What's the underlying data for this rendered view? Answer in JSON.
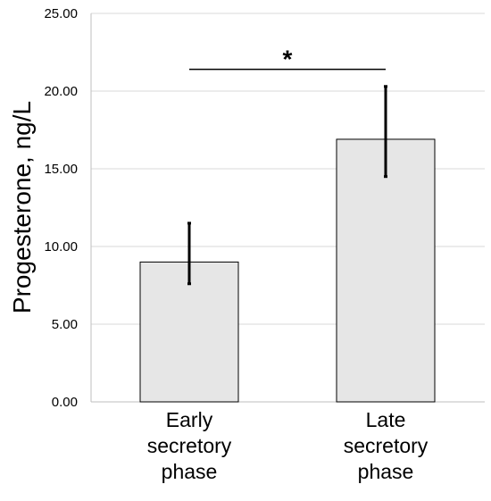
{
  "chart_data": {
    "type": "bar",
    "categories": [
      [
        "Early",
        "secretory",
        "phase"
      ],
      [
        "Late",
        "secretory",
        "phase"
      ]
    ],
    "values": [
      9.0,
      16.9
    ],
    "error_upper": [
      11.5,
      20.3
    ],
    "error_lower": [
      7.6,
      14.5
    ],
    "ylabel": "Progesterone, ng/L",
    "yticks": [
      "0.00",
      "5.00",
      "10.00",
      "15.00",
      "20.00",
      "25.00"
    ],
    "ylim": [
      0,
      25
    ],
    "grid": true,
    "significance": {
      "label": "*",
      "between": [
        0,
        1
      ],
      "y": 21.4
    },
    "colors": {
      "bar_fill": "#e6e6e6",
      "bar_stroke": "#000000",
      "grid": "#d9d9d9",
      "axis": "#bfbfbf",
      "error_bar": "#000000"
    }
  }
}
